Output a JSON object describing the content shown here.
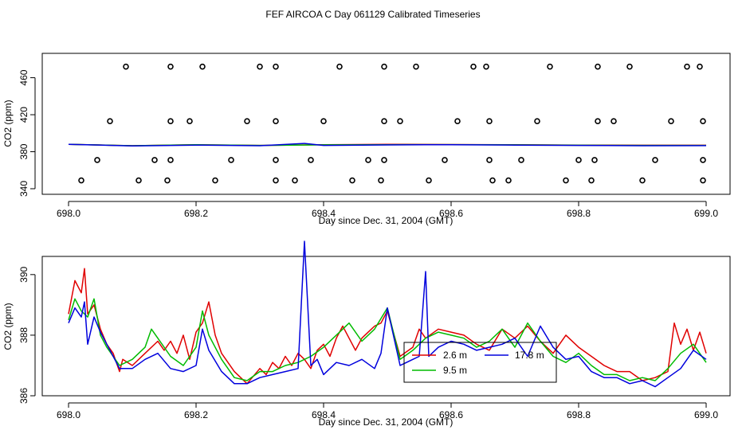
{
  "figure": {
    "title": "FEF AIRCOA C  Day 061129  Calibrated Timeseries"
  },
  "colors": {
    "red": "#e00000",
    "green": "#00bb00",
    "blue": "#0000dd",
    "axis": "#000000"
  },
  "chart_data": [
    {
      "type": "scatter+line",
      "xlabel": "Day since Dec. 31, 2004 (GMT)",
      "ylabel": "CO2 (ppm)",
      "xlim": [
        698.0,
        699.0
      ],
      "ylim": [
        340,
        476
      ],
      "xticks": [
        698.0,
        698.2,
        698.4,
        698.6,
        698.8,
        699.0
      ],
      "xtick_labels": [
        "698.0",
        "698.2",
        "698.4",
        "698.6",
        "698.8",
        "699.0"
      ],
      "yticks": [
        340,
        380,
        420,
        460
      ],
      "ytick_labels": [
        "340",
        "380",
        "420",
        "460"
      ],
      "standards": {
        "marker": "open-circle",
        "levels": [
          {
            "y": 472,
            "x": [
              698.09,
              698.16,
              698.21,
              698.3,
              698.325,
              698.425,
              698.495,
              698.545,
              698.635,
              698.655,
              698.755,
              698.83,
              698.88,
              698.97,
              698.99
            ]
          },
          {
            "y": 413,
            "x": [
              698.065,
              698.16,
              698.19,
              698.28,
              698.325,
              698.4,
              698.495,
              698.52,
              698.61,
              698.66,
              698.735,
              698.83,
              698.855,
              698.945,
              698.995
            ]
          },
          {
            "y": 371,
            "x": [
              698.045,
              698.135,
              698.16,
              698.255,
              698.325,
              698.38,
              698.47,
              698.495,
              698.59,
              698.66,
              698.71,
              698.8,
              698.825,
              698.92,
              698.995
            ]
          },
          {
            "y": 349,
            "x": [
              698.02,
              698.11,
              698.155,
              698.23,
              698.325,
              698.355,
              698.445,
              698.49,
              698.565,
              698.665,
              698.69,
              698.78,
              698.82,
              698.9,
              698.995
            ]
          }
        ]
      },
      "series": [
        {
          "name": "2.6 m",
          "color": "red",
          "x": [
            698.0,
            698.1,
            698.2,
            698.3,
            698.4,
            698.5,
            698.6,
            698.7,
            698.8,
            698.9,
            699.0
          ],
          "values": [
            388,
            386.5,
            387.5,
            386.8,
            387.5,
            388,
            387.8,
            387.5,
            387.2,
            387,
            387
          ]
        },
        {
          "name": "9.5 m",
          "color": "green",
          "x": [
            698.0,
            698.1,
            698.2,
            698.3,
            698.4,
            698.5,
            698.6,
            698.7,
            698.8,
            698.9,
            699.0
          ],
          "values": [
            388,
            386.5,
            387.5,
            386.8,
            387.4,
            387.6,
            387.7,
            387.4,
            387,
            386.8,
            386.8
          ]
        },
        {
          "name": "17.8 m",
          "color": "blue",
          "x": [
            698.0,
            698.1,
            698.2,
            698.3,
            698.37,
            698.4,
            698.5,
            698.56,
            698.6,
            698.7,
            698.8,
            698.9,
            699.0
          ],
          "values": [
            388,
            386.3,
            387.2,
            386.5,
            389,
            386.8,
            387.3,
            387.5,
            387.5,
            387.2,
            386.8,
            386.5,
            386.6
          ]
        }
      ]
    },
    {
      "type": "line",
      "xlabel": "Day since Dec. 31, 2004 (GMT)",
      "ylabel": "CO2 (ppm)",
      "xlim": [
        698.0,
        699.0
      ],
      "ylim": [
        386,
        390.6
      ],
      "xticks": [
        698.0,
        698.2,
        698.4,
        698.6,
        698.8,
        699.0
      ],
      "xtick_labels": [
        "698.0",
        "698.2",
        "698.4",
        "698.6",
        "698.8",
        "699.0"
      ],
      "yticks": [
        386,
        388,
        390
      ],
      "ytick_labels": [
        "386",
        "388",
        "390"
      ],
      "legend": {
        "placement": "bottom-center",
        "entries": [
          "2.6 m",
          "9.5 m",
          "17.8 m"
        ]
      },
      "series": [
        {
          "name": "2.6 m",
          "color": "red",
          "x": [
            698.0,
            698.01,
            698.02,
            698.025,
            698.03,
            698.04,
            698.05,
            698.06,
            698.07,
            698.08,
            698.085,
            698.1,
            698.12,
            698.14,
            698.15,
            698.16,
            698.17,
            698.18,
            698.19,
            698.2,
            698.21,
            698.22,
            698.23,
            698.24,
            698.26,
            698.28,
            698.3,
            698.31,
            698.32,
            698.33,
            698.34,
            698.35,
            698.36,
            698.37,
            698.38,
            698.39,
            698.4,
            698.41,
            698.42,
            698.43,
            698.44,
            698.45,
            698.46,
            698.47,
            698.48,
            698.49,
            698.5,
            698.52,
            698.54,
            698.55,
            698.56,
            698.58,
            698.6,
            698.62,
            698.64,
            698.66,
            698.68,
            698.7,
            698.72,
            698.74,
            698.76,
            698.78,
            698.8,
            698.82,
            698.84,
            698.86,
            698.88,
            698.9,
            698.92,
            698.94,
            698.95,
            698.96,
            698.97,
            698.98,
            698.99,
            699.0
          ],
          "values": [
            388.7,
            389.8,
            389.4,
            390.2,
            388.7,
            389.0,
            388.2,
            387.7,
            387.4,
            386.8,
            387.2,
            387.0,
            387.4,
            387.8,
            387.5,
            387.8,
            387.4,
            388.0,
            387.2,
            388.1,
            388.4,
            389.1,
            388.0,
            387.4,
            386.8,
            386.4,
            386.9,
            386.7,
            387.1,
            386.9,
            387.3,
            387.0,
            387.4,
            387.2,
            386.9,
            387.5,
            387.7,
            387.3,
            387.9,
            388.3,
            387.9,
            387.5,
            387.9,
            388.1,
            388.3,
            388.4,
            388.8,
            387.3,
            387.6,
            388.2,
            387.9,
            388.2,
            388.1,
            388.0,
            387.7,
            387.5,
            388.2,
            387.9,
            388.3,
            387.8,
            387.4,
            388.0,
            387.6,
            387.3,
            387.0,
            386.8,
            386.8,
            386.5,
            386.6,
            386.8,
            388.4,
            387.7,
            388.2,
            387.5,
            388.1,
            387.4
          ]
        },
        {
          "name": "9.5 m",
          "color": "green",
          "x": [
            698.0,
            698.01,
            698.02,
            698.03,
            698.04,
            698.05,
            698.06,
            698.08,
            698.1,
            698.12,
            698.13,
            698.14,
            698.16,
            698.18,
            698.2,
            698.21,
            698.22,
            698.24,
            698.26,
            698.28,
            698.3,
            698.32,
            698.34,
            698.36,
            698.38,
            698.4,
            698.42,
            698.44,
            698.46,
            698.48,
            698.5,
            698.52,
            698.54,
            698.56,
            698.58,
            698.6,
            698.62,
            698.64,
            698.66,
            698.68,
            698.7,
            698.72,
            698.74,
            698.76,
            698.78,
            698.8,
            698.82,
            698.84,
            698.86,
            698.88,
            698.9,
            698.92,
            698.94,
            698.96,
            698.98,
            699.0
          ],
          "values": [
            388.5,
            389.2,
            388.8,
            388.6,
            389.2,
            388.0,
            387.6,
            387.0,
            387.2,
            387.6,
            388.2,
            387.9,
            387.3,
            387.0,
            387.6,
            388.8,
            388.0,
            387.2,
            386.6,
            386.5,
            386.8,
            386.8,
            387.0,
            387.1,
            387.3,
            387.6,
            388.0,
            388.4,
            387.8,
            388.2,
            388.9,
            387.2,
            387.5,
            387.9,
            388.1,
            388.0,
            387.9,
            387.6,
            387.8,
            388.2,
            387.6,
            388.4,
            387.8,
            387.3,
            387.1,
            387.4,
            387.0,
            386.7,
            386.7,
            386.5,
            386.6,
            386.5,
            386.9,
            387.4,
            387.7,
            387.1
          ]
        },
        {
          "name": "17.8 m",
          "color": "blue",
          "x": [
            698.0,
            698.01,
            698.02,
            698.025,
            698.03,
            698.04,
            698.05,
            698.06,
            698.08,
            698.1,
            698.12,
            698.14,
            698.16,
            698.18,
            698.2,
            698.21,
            698.22,
            698.24,
            698.26,
            698.28,
            698.3,
            698.32,
            698.34,
            698.36,
            698.37,
            698.38,
            698.39,
            698.4,
            698.42,
            698.44,
            698.46,
            698.48,
            698.49,
            698.5,
            698.52,
            698.54,
            698.55,
            698.56,
            698.565,
            698.58,
            698.6,
            698.62,
            698.64,
            698.66,
            698.68,
            698.7,
            698.72,
            698.74,
            698.76,
            698.78,
            698.8,
            698.82,
            698.84,
            698.86,
            698.88,
            698.9,
            698.92,
            698.94,
            698.96,
            698.98,
            699.0
          ],
          "values": [
            388.4,
            388.9,
            388.6,
            389.1,
            387.7,
            388.6,
            388.1,
            387.7,
            386.9,
            386.9,
            387.2,
            387.4,
            386.9,
            386.8,
            387.0,
            388.2,
            387.5,
            386.8,
            386.4,
            386.4,
            386.6,
            386.7,
            386.8,
            386.9,
            391.1,
            387.0,
            387.2,
            386.7,
            387.1,
            387.0,
            387.2,
            386.9,
            387.4,
            388.9,
            387.0,
            387.2,
            387.3,
            390.1,
            387.3,
            387.6,
            387.8,
            387.7,
            387.5,
            387.6,
            387.7,
            387.9,
            387.3,
            388.3,
            387.6,
            387.2,
            387.3,
            386.8,
            386.6,
            386.6,
            386.4,
            386.5,
            386.3,
            386.6,
            386.9,
            387.5,
            387.2
          ]
        }
      ]
    }
  ]
}
